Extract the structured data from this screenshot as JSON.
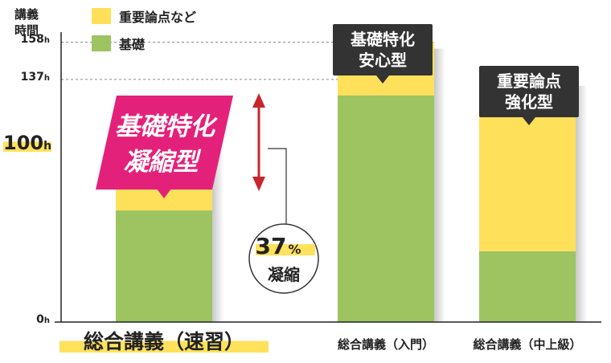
{
  "y_title": "講義\n時間",
  "legend": [
    {
      "label": "重要論点など",
      "color": "#FFE05A"
    },
    {
      "label": "基礎",
      "color": "#9DC461"
    }
  ],
  "chart_data": {
    "type": "bar",
    "stacked": true,
    "categories": [
      "総合講義（速習）",
      "総合講義（入門）",
      "総合講義（中上級）"
    ],
    "series": [
      {
        "name": "基礎",
        "values": [
          63,
          128,
          40
        ]
      },
      {
        "name": "重要論点など",
        "values": [
          37,
          30,
          97
        ]
      }
    ],
    "totals": [
      100,
      158,
      137
    ],
    "yticks": [
      {
        "value": 0,
        "label": "0",
        "unit": "h"
      },
      {
        "value": 100,
        "label": "100",
        "unit": "h"
      },
      {
        "value": 137,
        "label": "137",
        "unit": "h"
      },
      {
        "value": 158,
        "label": "158",
        "unit": "h"
      }
    ],
    "ylim": [
      0,
      175
    ],
    "grid_reference_lines": [
      158,
      137
    ]
  },
  "callouts": {
    "bar1": "基礎特化\n凝縮型",
    "bar2": "基礎特化\n安心型",
    "bar3": "重要論点\n強化型"
  },
  "annotation": {
    "percent": "37",
    "percent_sign": "%",
    "text": "凝縮"
  },
  "colors": {
    "foundation": "#9DC461",
    "important": "#FFE05A",
    "highlight": "#FFE25C",
    "pink": "#E4217A",
    "arrow": "#C8252D",
    "dark": "#333333"
  }
}
